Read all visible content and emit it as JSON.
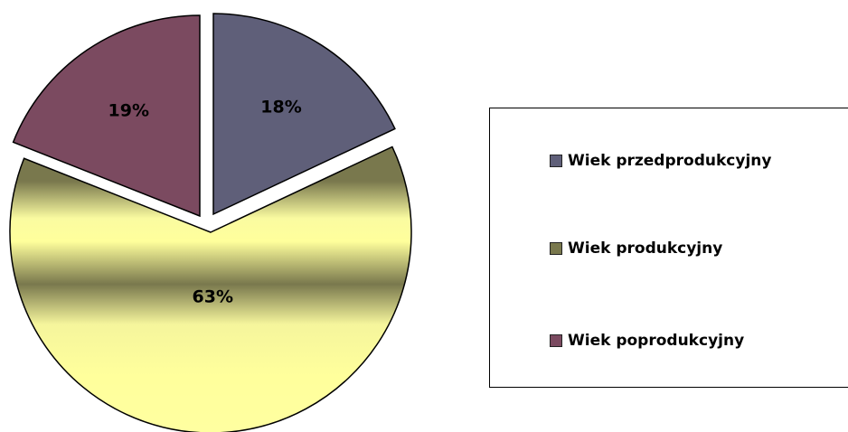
{
  "chart_data": {
    "type": "pie",
    "categories": [
      "Wiek przedprodukcyjny",
      "Wiek produkcyjny",
      "Wiek poprodukcyjny"
    ],
    "values": [
      18,
      63,
      19
    ],
    "labels": [
      "18%",
      "63%",
      "19%"
    ],
    "colors": [
      "#5f5f79",
      "#79784d",
      "#7b4a60"
    ],
    "exploded": true,
    "legend_position": "right"
  }
}
